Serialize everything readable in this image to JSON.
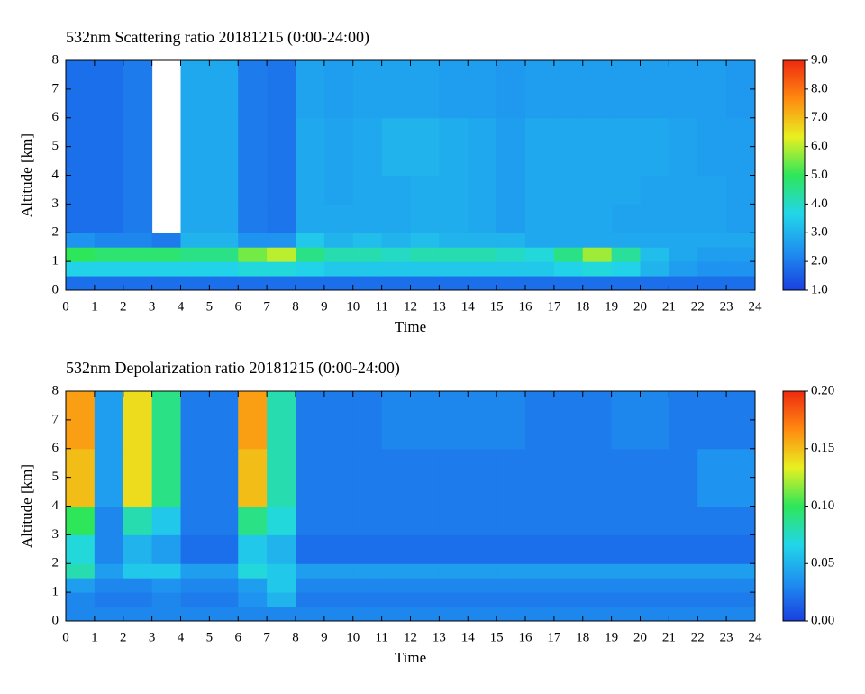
{
  "chart_data": [
    {
      "type": "heatmap",
      "title": "532nm Scattering ratio  20181215 (0:00-24:00)",
      "xlabel": "Time",
      "ylabel": "Altitude [km]",
      "x_bins": [
        0,
        1,
        2,
        3,
        4,
        5,
        6,
        7,
        8,
        9,
        10,
        11,
        12,
        13,
        14,
        15,
        16,
        17,
        18,
        19,
        20,
        21,
        22,
        23,
        24
      ],
      "y_bins": [
        0,
        0.5,
        1,
        1.5,
        2,
        3,
        4,
        6,
        8
      ],
      "z": [
        [
          1.8,
          1.8,
          1.8,
          1.8,
          1.8,
          1.8,
          1.8,
          1.8,
          1.8,
          1.8,
          1.8,
          1.8,
          1.8,
          1.8,
          1.8,
          1.8,
          1.8,
          1.8,
          1.8,
          1.8,
          1.8,
          1.8,
          1.8,
          1.8
        ],
        [
          3.6,
          3.6,
          3.6,
          3.6,
          3.6,
          3.6,
          3.8,
          3.8,
          3.6,
          3.4,
          3.4,
          3.4,
          3.4,
          3.4,
          3.4,
          3.4,
          3.4,
          3.6,
          3.8,
          3.6,
          3.0,
          2.6,
          2.4,
          2.4
        ],
        [
          5.0,
          4.8,
          4.8,
          4.8,
          4.6,
          4.6,
          5.5,
          6.0,
          4.6,
          4.2,
          4.2,
          4.0,
          4.2,
          4.2,
          4.2,
          4.0,
          3.8,
          4.6,
          5.8,
          4.4,
          3.2,
          2.8,
          2.6,
          2.6
        ],
        [
          2.4,
          2.2,
          2.2,
          2.0,
          3.0,
          3.0,
          2.4,
          2.4,
          3.4,
          3.0,
          3.2,
          3.0,
          3.2,
          3.0,
          3.0,
          3.0,
          2.8,
          2.8,
          2.8,
          2.8,
          2.8,
          2.8,
          2.8,
          2.8
        ],
        [
          1.8,
          1.8,
          2.0,
          null,
          2.8,
          2.8,
          2.0,
          1.9,
          2.8,
          2.8,
          2.8,
          2.8,
          2.9,
          2.9,
          2.8,
          2.6,
          2.8,
          2.8,
          2.8,
          2.7,
          2.7,
          2.7,
          2.7,
          2.6
        ],
        [
          1.8,
          1.8,
          2.0,
          null,
          2.8,
          2.8,
          2.0,
          1.9,
          2.8,
          2.7,
          2.8,
          2.8,
          2.9,
          2.9,
          2.8,
          2.6,
          2.8,
          2.8,
          2.8,
          2.8,
          2.7,
          2.7,
          2.7,
          2.6
        ],
        [
          1.8,
          1.8,
          2.0,
          null,
          2.8,
          2.8,
          2.0,
          1.9,
          2.8,
          2.7,
          2.8,
          3.0,
          3.0,
          2.9,
          2.8,
          2.6,
          2.8,
          2.8,
          2.8,
          2.8,
          2.8,
          2.7,
          2.6,
          2.6
        ],
        [
          1.8,
          1.8,
          2.0,
          null,
          2.8,
          2.8,
          2.0,
          1.9,
          2.7,
          2.6,
          2.7,
          2.7,
          2.7,
          2.6,
          2.6,
          2.5,
          2.6,
          2.6,
          2.6,
          2.6,
          2.6,
          2.6,
          2.6,
          2.5
        ]
      ],
      "xlim": [
        0,
        24
      ],
      "xticks": [
        0,
        1,
        2,
        3,
        4,
        5,
        6,
        7,
        8,
        9,
        10,
        11,
        12,
        13,
        14,
        15,
        16,
        17,
        18,
        19,
        20,
        21,
        22,
        23,
        24
      ],
      "ylim": [
        0,
        8
      ],
      "yticks": [
        0,
        1,
        2,
        3,
        4,
        5,
        6,
        7,
        8
      ],
      "zlim": [
        1,
        9
      ],
      "zticks": [
        {
          "value": 1,
          "label": "1.0"
        },
        {
          "value": 2,
          "label": "2.0"
        },
        {
          "value": 3,
          "label": "3.0"
        },
        {
          "value": 4,
          "label": "4.0"
        },
        {
          "value": 5,
          "label": "5.0"
        },
        {
          "value": 6,
          "label": "6.0"
        },
        {
          "value": 7,
          "label": "7.0"
        },
        {
          "value": 8,
          "label": "8.0"
        },
        {
          "value": 9,
          "label": "9.0"
        }
      ],
      "colormap": [
        "#1a3fe0",
        "#1e8ff0",
        "#22d6e8",
        "#2ee65a",
        "#e8f020",
        "#ff8a10",
        "#ee2a10"
      ]
    },
    {
      "type": "heatmap",
      "title": "532nm Depolarization ratio  20181215 (0:00-24:00)",
      "xlabel": "Time",
      "ylabel": "Altitude [km]",
      "x_bins": [
        0,
        1,
        2,
        3,
        4,
        5,
        6,
        7,
        8,
        9,
        10,
        11,
        12,
        13,
        14,
        15,
        16,
        17,
        18,
        19,
        20,
        21,
        22,
        23,
        24
      ],
      "y_bins": [
        0,
        0.5,
        1,
        1.5,
        2,
        3,
        4,
        6,
        8
      ],
      "z": [
        [
          0.03,
          0.03,
          0.03,
          0.03,
          0.03,
          0.03,
          0.03,
          0.03,
          0.03,
          0.03,
          0.03,
          0.03,
          0.03,
          0.03,
          0.03,
          0.03,
          0.03,
          0.03,
          0.03,
          0.03,
          0.03,
          0.03,
          0.03,
          0.03
        ],
        [
          0.03,
          0.025,
          0.025,
          0.03,
          0.025,
          0.025,
          0.035,
          0.05,
          0.025,
          0.025,
          0.025,
          0.025,
          0.025,
          0.025,
          0.025,
          0.025,
          0.025,
          0.025,
          0.025,
          0.025,
          0.025,
          0.025,
          0.025,
          0.025
        ],
        [
          0.04,
          0.03,
          0.03,
          0.035,
          0.03,
          0.03,
          0.04,
          0.06,
          0.03,
          0.03,
          0.03,
          0.03,
          0.03,
          0.03,
          0.03,
          0.03,
          0.03,
          0.03,
          0.03,
          0.03,
          0.03,
          0.03,
          0.03,
          0.03
        ],
        [
          0.08,
          0.04,
          0.06,
          0.06,
          0.04,
          0.04,
          0.07,
          0.06,
          0.04,
          0.04,
          0.04,
          0.04,
          0.04,
          0.04,
          0.04,
          0.04,
          0.04,
          0.04,
          0.04,
          0.04,
          0.04,
          0.04,
          0.04,
          0.04
        ],
        [
          0.07,
          0.03,
          0.05,
          0.04,
          0.02,
          0.02,
          0.06,
          0.05,
          0.02,
          0.02,
          0.02,
          0.02,
          0.02,
          0.02,
          0.02,
          0.02,
          0.02,
          0.02,
          0.02,
          0.02,
          0.02,
          0.02,
          0.02,
          0.02
        ],
        [
          0.1,
          0.03,
          0.08,
          0.06,
          0.025,
          0.025,
          0.09,
          0.07,
          0.025,
          0.025,
          0.025,
          0.025,
          0.025,
          0.025,
          0.025,
          0.025,
          0.025,
          0.025,
          0.025,
          0.025,
          0.025,
          0.025,
          0.025,
          0.025
        ],
        [
          0.15,
          0.04,
          0.14,
          0.09,
          0.025,
          0.025,
          0.15,
          0.08,
          0.025,
          0.025,
          0.025,
          0.025,
          0.025,
          0.025,
          0.025,
          0.025,
          0.025,
          0.025,
          0.025,
          0.025,
          0.025,
          0.025,
          0.035,
          0.035
        ],
        [
          0.16,
          0.04,
          0.14,
          0.09,
          0.025,
          0.025,
          0.16,
          0.08,
          0.025,
          0.025,
          0.025,
          0.03,
          0.03,
          0.03,
          0.03,
          0.03,
          0.025,
          0.025,
          0.025,
          0.03,
          0.03,
          0.025,
          0.025,
          0.025
        ]
      ],
      "xlim": [
        0,
        24
      ],
      "xticks": [
        0,
        1,
        2,
        3,
        4,
        5,
        6,
        7,
        8,
        9,
        10,
        11,
        12,
        13,
        14,
        15,
        16,
        17,
        18,
        19,
        20,
        21,
        22,
        23,
        24
      ],
      "ylim": [
        0,
        8
      ],
      "yticks": [
        0,
        1,
        2,
        3,
        4,
        5,
        6,
        7,
        8
      ],
      "zlim": [
        0,
        0.2
      ],
      "zticks": [
        {
          "value": 0,
          "label": "0.00"
        },
        {
          "value": 0.05,
          "label": "0.05"
        },
        {
          "value": 0.1,
          "label": "0.10"
        },
        {
          "value": 0.15,
          "label": "0.15"
        },
        {
          "value": 0.2,
          "label": "0.20"
        }
      ],
      "colormap": [
        "#1a3fe0",
        "#1e8ff0",
        "#22d6e8",
        "#2ee65a",
        "#e8f020",
        "#ff8a10",
        "#ee2a10"
      ]
    }
  ]
}
